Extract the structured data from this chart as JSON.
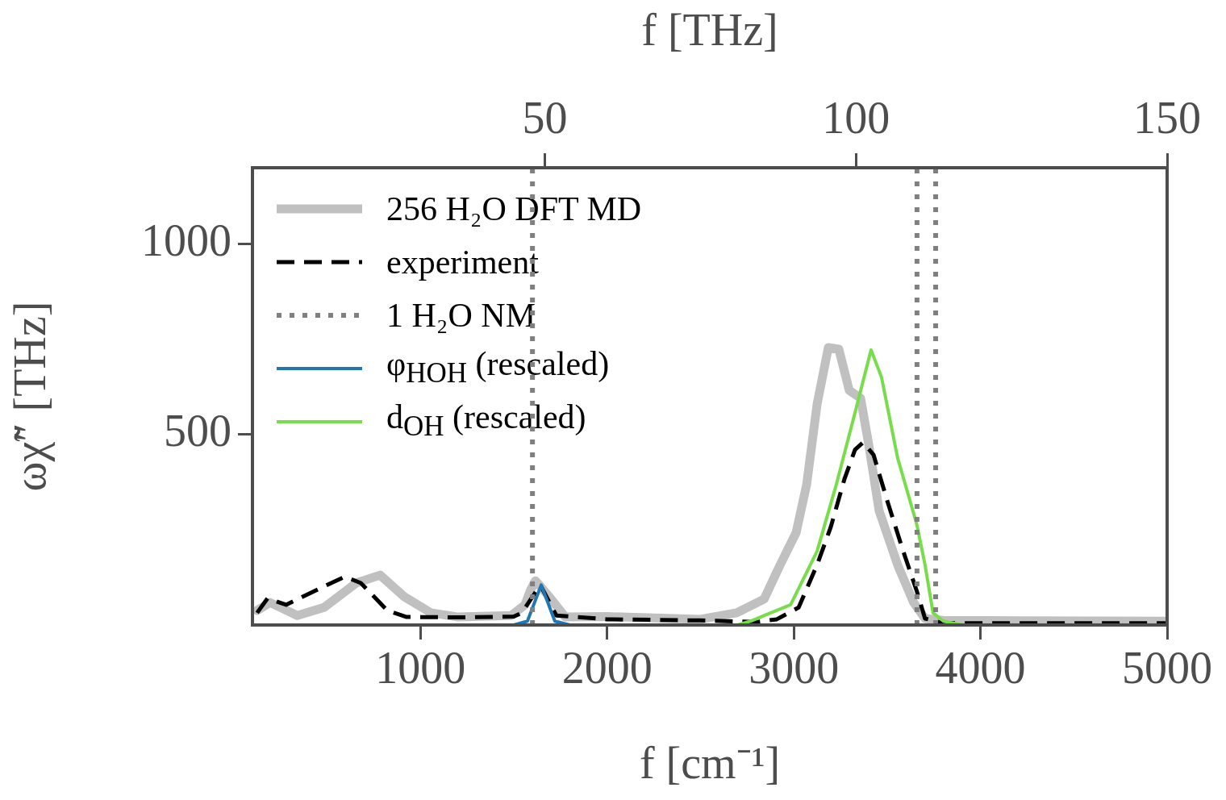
{
  "chart_data": {
    "type": "line",
    "xlabel": "f [cm⁻¹]",
    "x2label": "f [THz]",
    "ylabel": "ωχ̃″ [THz]",
    "xlim": [
      100,
      5000
    ],
    "xticks": [
      1000,
      2000,
      3000,
      4000,
      5000
    ],
    "x2lim": [
      3.0,
      150
    ],
    "x2ticks": [
      50,
      100,
      150
    ],
    "ylim": [
      0,
      1200
    ],
    "yticks": [
      500,
      1000
    ],
    "legend": "top left",
    "series": [
      {
        "name": "256 H₂O DFT MD",
        "color": "#c0c0c0",
        "line_style": "solid",
        "x": [
          125,
          194,
          340,
          483,
          655,
          784,
          914,
          1056,
          1203,
          1487,
          1560,
          1590,
          1616,
          1645,
          1690,
          1776,
          2000,
          2500,
          2694,
          2841,
          2927,
          3013,
          3069,
          3125,
          3185,
          3241,
          3297,
          3358,
          3401,
          3457,
          3556,
          3642,
          3703,
          3800,
          5000
        ],
        "values": [
          38,
          59,
          25,
          46,
          110,
          131,
          74,
          32,
          21,
          25,
          53,
          92,
          116,
          100,
          74,
          21,
          22,
          15,
          32,
          68,
          158,
          243,
          369,
          580,
          728,
          724,
          616,
          595,
          475,
          300,
          158,
          59,
          17,
          12,
          10
        ]
      },
      {
        "name": "experiment",
        "color": "#000000",
        "line_style": "dashed",
        "x": [
          125,
          181,
          280,
          483,
          595,
          681,
          823,
          926,
          1200,
          1500,
          1543,
          1642,
          1728,
          2000,
          2500,
          2800,
          2909,
          3026,
          3125,
          3198,
          3272,
          3328,
          3371,
          3427,
          3500,
          3586,
          3659,
          3703,
          3800,
          5000
        ],
        "values": [
          32,
          70,
          53,
          101,
          127,
          110,
          38,
          21,
          20,
          22,
          32,
          105,
          25,
          15,
          12,
          8,
          15,
          46,
          158,
          257,
          384,
          460,
          479,
          447,
          327,
          194,
          89,
          17,
          5,
          5
        ]
      },
      {
        "name": "1 H₂O NM",
        "color": "#808080",
        "line_style": "dotted",
        "x": [
          1600,
          1600
        ],
        "values": [
          0,
          1200
        ]
      },
      {
        "color": "#808080",
        "line_style": "dotted",
        "x": [
          3660,
          3660
        ],
        "values": [
          0,
          1200
        ]
      },
      {
        "color": "#808080",
        "line_style": "dotted",
        "x": [
          3760,
          3760
        ],
        "values": [
          0,
          1200
        ]
      },
      {
        "name": "φ$_{HOH}$ (rescaled)",
        "color": "#1f77b4",
        "line_style": "solid",
        "x": [
          1500,
          1573,
          1647,
          1720,
          1800
        ],
        "values": [
          0,
          10,
          105,
          10,
          0
        ]
      },
      {
        "name": "d$_{OH}$ (rescaled)",
        "color": "#77dd4a",
        "line_style": "solid",
        "x": [
          2700,
          2767,
          2983,
          3125,
          3228,
          3340,
          3414,
          3470,
          3556,
          3659,
          3703,
          3746,
          3802,
          3900
        ],
        "values": [
          0,
          10,
          53,
          194,
          369,
          580,
          722,
          650,
          439,
          264,
          158,
          32,
          10,
          0
        ]
      }
    ]
  }
}
